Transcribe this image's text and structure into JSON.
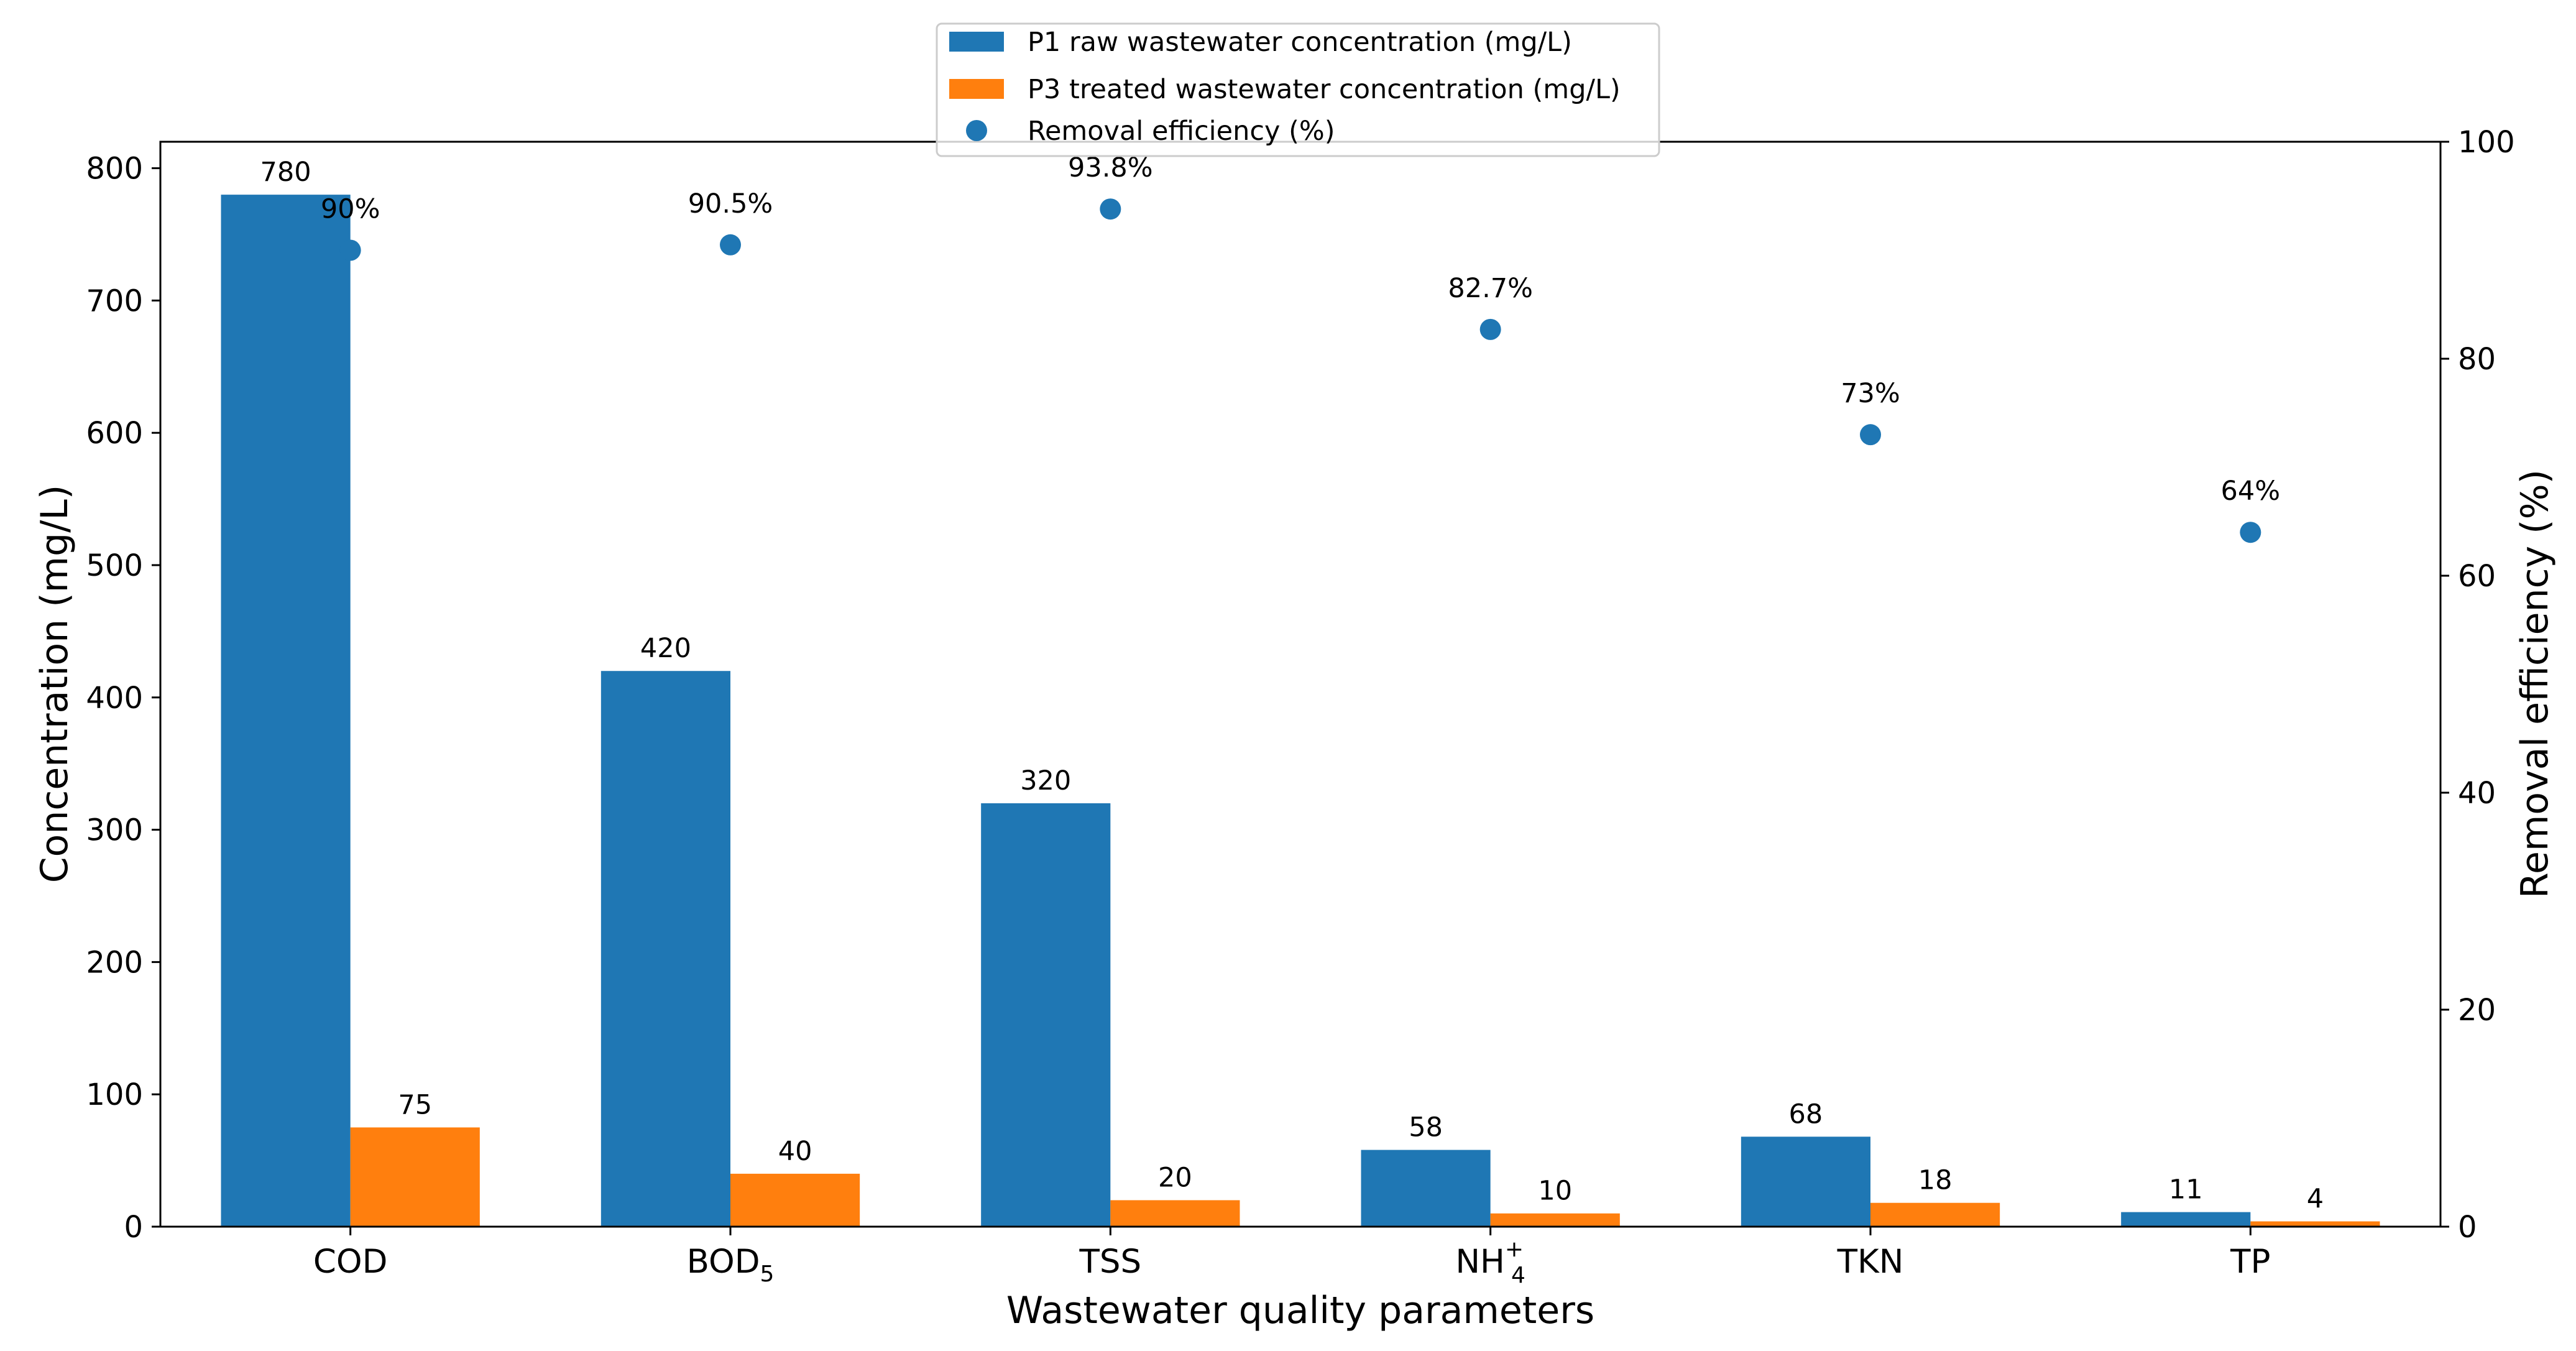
{
  "chart_data": {
    "type": "bar",
    "xlabel": "Wastewater quality parameters",
    "ylabel": "Concentration (mg/L)",
    "y2label": "Removal efficiency (%)",
    "categories": [
      "COD",
      "BOD5",
      "TSS",
      "NH4+",
      "TKN",
      "TP"
    ],
    "category_display": [
      {
        "base": "COD",
        "sub": "",
        "sup": ""
      },
      {
        "base": "BOD",
        "sub": "5",
        "sup": ""
      },
      {
        "base": "TSS",
        "sub": "",
        "sup": ""
      },
      {
        "base": "NH",
        "sub": "4",
        "sup": "+"
      },
      {
        "base": "TKN",
        "sub": "",
        "sup": ""
      },
      {
        "base": "TP",
        "sub": "",
        "sup": ""
      }
    ],
    "series": [
      {
        "name": "P1 raw wastewater concentration (mg/L)",
        "type": "bar",
        "axis": "left",
        "color": "#1f77b4",
        "values": [
          780,
          420,
          320,
          58,
          68,
          11
        ],
        "labels": [
          "780",
          "420",
          "320",
          "58",
          "68",
          "11"
        ]
      },
      {
        "name": "P3 treated wastewater concentration (mg/L)",
        "type": "bar",
        "axis": "left",
        "color": "#ff7f0e",
        "values": [
          75,
          40,
          20,
          10,
          18,
          4
        ],
        "labels": [
          "75",
          "40",
          "20",
          "10",
          "18",
          "4"
        ]
      },
      {
        "name": "Removal efficiency (%)",
        "type": "scatter",
        "axis": "right",
        "color": "#1f77b4",
        "values": [
          90,
          90.5,
          93.8,
          82.7,
          73,
          64
        ],
        "labels": [
          "90%",
          "90.5%",
          "93.8%",
          "82.7%",
          "73%",
          "64%"
        ]
      }
    ],
    "ylim": [
      0,
      820
    ],
    "y2lim": [
      0,
      100
    ],
    "yticks": [
      "0",
      "100",
      "200",
      "300",
      "400",
      "500",
      "600",
      "700",
      "800"
    ],
    "y2ticks": [
      "0",
      "20",
      "40",
      "60",
      "80",
      "100"
    ],
    "grid": false,
    "legend_position": "top-center"
  }
}
